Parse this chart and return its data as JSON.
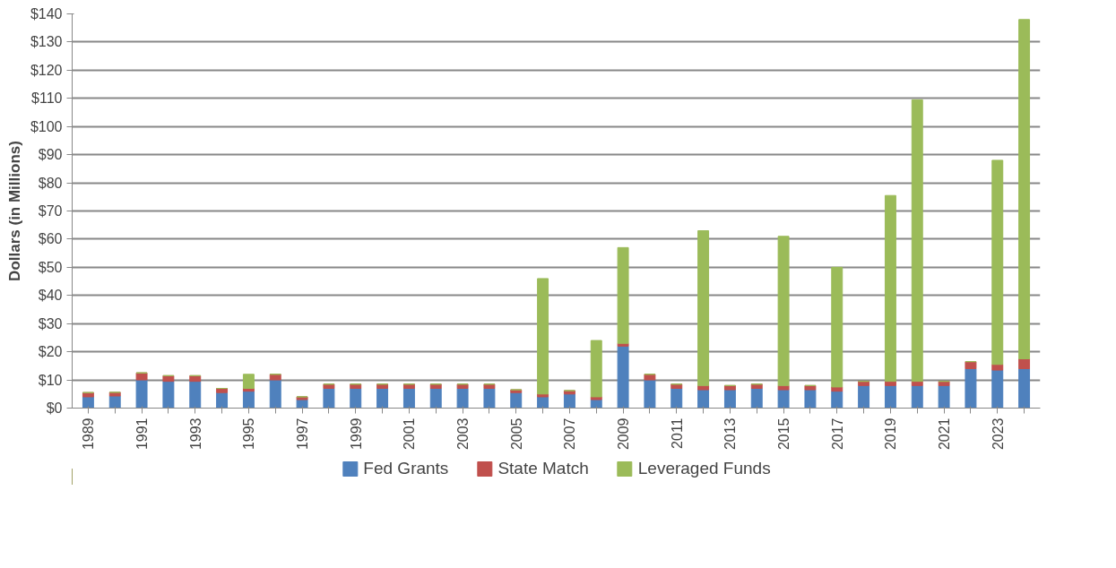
{
  "chart_data": {
    "type": "bar",
    "stacked": true,
    "ylabel": "Dollars (in Millions)",
    "categories": [
      "1989",
      null,
      "1991",
      null,
      "1993",
      null,
      "1995",
      null,
      "1997",
      null,
      "1999",
      null,
      "2001",
      null,
      "2003",
      null,
      "2005",
      null,
      "2007",
      null,
      "2009",
      null,
      "2011",
      null,
      "2013",
      null,
      "2015",
      null,
      "2017",
      null,
      "2019",
      null,
      "2021",
      null,
      "2023",
      null
    ],
    "series": [
      {
        "name": "Fed Grants",
        "color": "#4f81bd",
        "values": [
          4,
          4.3,
          10,
          9.5,
          9.5,
          5.5,
          6,
          10,
          3,
          7,
          7,
          7,
          7,
          7,
          7,
          7,
          5.5,
          4,
          5,
          3,
          22,
          10,
          7,
          6.5,
          6.5,
          7,
          6.5,
          6.5,
          6,
          8,
          8,
          8,
          8,
          14,
          13.5,
          14
        ]
      },
      {
        "name": "State Match",
        "color": "#c0504d",
        "values": [
          1.5,
          1.3,
          2.5,
          2,
          2,
          1.5,
          1,
          2,
          1,
          1.5,
          1.5,
          1.5,
          1.5,
          1.5,
          1.5,
          1.5,
          1,
          1,
          1.2,
          1,
          1,
          2,
          1.5,
          1.5,
          1.5,
          1.5,
          1.5,
          1.5,
          1.5,
          1.5,
          1.5,
          1.5,
          1.5,
          2.5,
          2,
          3.5
        ]
      },
      {
        "name": "Leveraged Funds",
        "color": "#9bbb59",
        "values": [
          0,
          0,
          0,
          0,
          0,
          0,
          5,
          0,
          0,
          0,
          0,
          0,
          0,
          0,
          0,
          0,
          0,
          41,
          0,
          20,
          34,
          0,
          0,
          55,
          0,
          0,
          53,
          0,
          42.5,
          0,
          66,
          100,
          0,
          0,
          72.5,
          120.5
        ]
      }
    ],
    "ylim": [
      0,
      140
    ],
    "yticks": [
      {
        "value": 0,
        "label": "$0"
      },
      {
        "value": 10,
        "label": "$10"
      },
      {
        "value": 20,
        "label": "$20"
      },
      {
        "value": 30,
        "label": "$30"
      },
      {
        "value": 40,
        "label": "$40"
      },
      {
        "value": 50,
        "label": "$50"
      },
      {
        "value": 60,
        "label": "$60"
      },
      {
        "value": 70,
        "label": "$70"
      },
      {
        "value": 80,
        "label": "$80"
      },
      {
        "value": 90,
        "label": "$90"
      },
      {
        "value": 100,
        "label": "$100"
      },
      {
        "value": 110,
        "label": "$110"
      },
      {
        "value": 120,
        "label": "$120"
      },
      {
        "value": 130,
        "label": "$130"
      },
      {
        "value": 140,
        "label": "$140"
      }
    ],
    "grid": "y",
    "legend": "bottom"
  }
}
